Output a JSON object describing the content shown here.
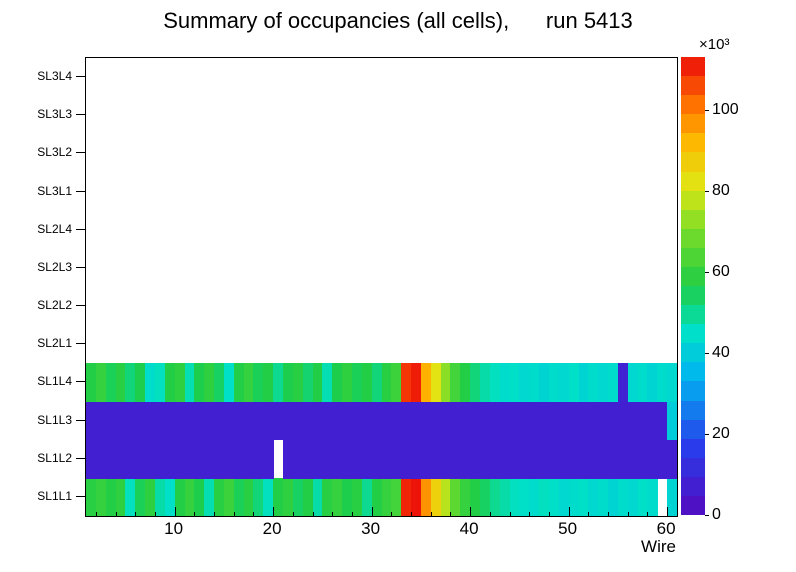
{
  "title": "Summary of occupancies (all cells),      run 5413",
  "axes": {
    "x_label": "Wire",
    "x_ticks": [
      10,
      20,
      30,
      40,
      50,
      60
    ],
    "colorbar_ticks": [
      0,
      20,
      40,
      60,
      80,
      100
    ],
    "colorbar_exponent": "×10³"
  },
  "palette": {
    "stops": [
      {
        "t": 0.0,
        "color": "#550ABE"
      },
      {
        "t": 0.15,
        "color": "#283CEB"
      },
      {
        "t": 0.3,
        "color": "#00B4F0"
      },
      {
        "t": 0.4,
        "color": "#00E1C8"
      },
      {
        "t": 0.5,
        "color": "#1ECD46"
      },
      {
        "t": 0.62,
        "color": "#78DC28"
      },
      {
        "t": 0.72,
        "color": "#E1E614"
      },
      {
        "t": 0.82,
        "color": "#FFB400"
      },
      {
        "t": 0.9,
        "color": "#FF6E00"
      },
      {
        "t": 1.0,
        "color": "#EB0A0A"
      }
    ]
  },
  "chart_data": {
    "type": "heatmap",
    "title": "Summary of occupancies (all cells),      run 5413",
    "xlabel": "Wire",
    "x_range": [
      1,
      61
    ],
    "zlim": [
      0,
      113
    ],
    "z_unit_exponent": "×10³",
    "rows": [
      {
        "label": "SL1L1",
        "values": [
          58,
          60,
          57,
          59,
          46,
          55,
          59,
          48,
          45,
          57,
          60,
          56,
          47,
          58,
          61,
          55,
          58,
          52,
          46,
          57,
          59,
          54,
          57,
          48,
          58,
          60,
          56,
          58,
          50,
          57,
          60,
          62,
          110,
          112,
          97,
          86,
          77,
          66,
          60,
          57,
          54,
          50,
          48,
          46,
          45,
          44,
          46,
          45,
          43,
          44,
          45,
          43,
          44,
          42,
          44,
          43,
          45,
          44,
          0,
          42
        ]
      },
      {
        "label": "SL1L2",
        "values": [
          7,
          7,
          7,
          7,
          7,
          7,
          7,
          7,
          7,
          7,
          7,
          7,
          7,
          7,
          7,
          7,
          7,
          7,
          7,
          0,
          7,
          7,
          7,
          7,
          7,
          7,
          7,
          7,
          7,
          7,
          7,
          7,
          7,
          7,
          7,
          7,
          7,
          7,
          7,
          7,
          7,
          7,
          7,
          7,
          7,
          7,
          7,
          7,
          7,
          7,
          7,
          7,
          7,
          7,
          7,
          7,
          7,
          7,
          7,
          7
        ]
      },
      {
        "label": "SL1L3",
        "values": [
          7,
          7,
          7,
          7,
          7,
          7,
          7,
          7,
          7,
          7,
          7,
          7,
          7,
          7,
          7,
          7,
          7,
          7,
          7,
          7,
          7,
          7,
          7,
          7,
          7,
          7,
          7,
          7,
          7,
          7,
          7,
          7,
          7,
          7,
          7,
          7,
          7,
          7,
          7,
          7,
          7,
          7,
          7,
          7,
          7,
          7,
          7,
          7,
          7,
          7,
          7,
          7,
          7,
          7,
          7,
          7,
          7,
          7,
          7,
          40
        ]
      },
      {
        "label": "SL1L4",
        "values": [
          57,
          60,
          55,
          58,
          52,
          56,
          44,
          46,
          57,
          59,
          47,
          56,
          59,
          54,
          45,
          57,
          60,
          55,
          57,
          50,
          56,
          58,
          53,
          57,
          47,
          56,
          59,
          55,
          57,
          52,
          58,
          61,
          108,
          111,
          93,
          82,
          72,
          62,
          57,
          52,
          48,
          46,
          44,
          45,
          43,
          44,
          42,
          44,
          43,
          45,
          42,
          44,
          43,
          44,
          8,
          43,
          44,
          42,
          44,
          43
        ]
      },
      {
        "label": "SL2L1",
        "values": []
      },
      {
        "label": "SL2L2",
        "values": []
      },
      {
        "label": "SL2L3",
        "values": []
      },
      {
        "label": "SL2L4",
        "values": []
      },
      {
        "label": "SL3L1",
        "values": []
      },
      {
        "label": "SL3L2",
        "values": []
      },
      {
        "label": "SL3L3",
        "values": []
      },
      {
        "label": "SL3L4",
        "values": []
      }
    ]
  }
}
